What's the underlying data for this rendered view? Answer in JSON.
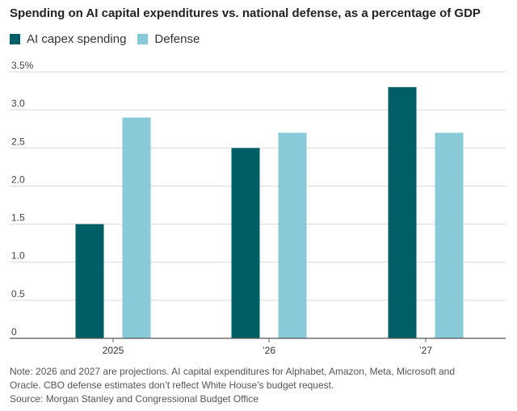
{
  "chart_data": {
    "type": "bar",
    "title": "Spending on AI capital expenditures vs. national defense, as a percentage of GDP",
    "categories": [
      "2025",
      "’26",
      "’27"
    ],
    "series": [
      {
        "name": "AI capex spending",
        "values": [
          1.5,
          2.5,
          3.3
        ],
        "color": "#005f66"
      },
      {
        "name": "Defense",
        "values": [
          2.9,
          2.7,
          2.7
        ],
        "color": "#88cad8"
      }
    ],
    "y_ticks": [
      "0",
      "0.5",
      "1.0",
      "1.5",
      "2.0",
      "2.5",
      "3.0",
      "3.5%"
    ],
    "ylim": [
      0,
      3.5
    ],
    "grid": true,
    "legend_position": "top-left"
  },
  "notes": {
    "note_line1": "Note: 2026 and 2027 are projections. AI capital expenditures for Alphabet, Amazon, Meta, Microsoft and",
    "note_line2": "Oracle. CBO defense estimates don’t reflect White House’s budget request.",
    "source": "Source: Morgan Stanley and Congressional Budget Office"
  }
}
